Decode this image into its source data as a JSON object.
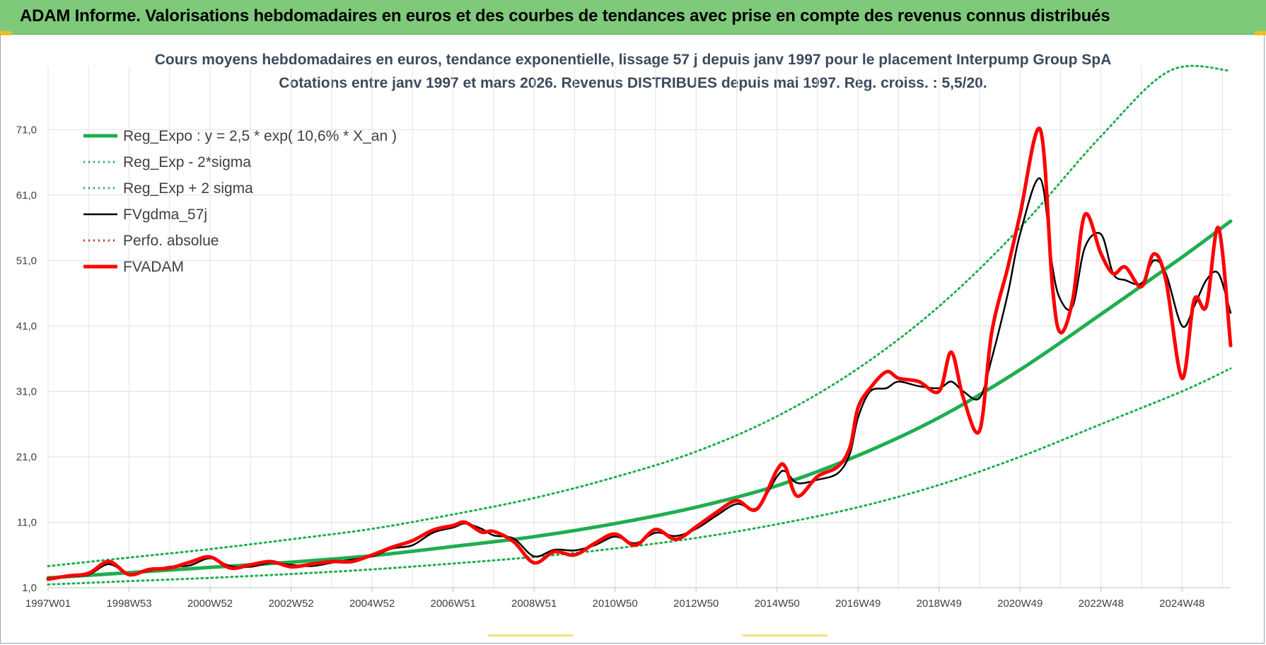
{
  "banner": {
    "title": "ADAM Informe. Valorisations hebdomadaires en euros et des courbes de tendances avec prise en compte des revenus connus distribués"
  },
  "chart_data": {
    "type": "line",
    "title": "Cours moyens hebdomadaires en euros, tendance exponentielle, lissage 57 j depuis janv 1997  pour le placement Interpump Group SpA",
    "subtitle": "Cotations entre janv 1997 et mars 2026. Revenus DISTRIBUES depuis mai 1997. Reg. croiss. : 5,5/20.",
    "xlabel": "",
    "ylabel": "",
    "xlim": [
      1997.0,
      2026.2
    ],
    "ylim": [
      1.0,
      80.0
    ],
    "y_ticks": [
      "1,0",
      "11,0",
      "21,0",
      "31,0",
      "41,0",
      "51,0",
      "61,0",
      "71,0"
    ],
    "y_tick_values": [
      1,
      11,
      21,
      31,
      41,
      51,
      61,
      71
    ],
    "x_ticks": [
      "1997W01",
      "1998W53",
      "2000W52",
      "2002W52",
      "2004W52",
      "2006W51",
      "2008W51",
      "2010W50",
      "2012W50",
      "2014W50",
      "2016W49",
      "2018W49",
      "2020W49",
      "2022W48",
      "2024W48"
    ],
    "x_tick_values": [
      1997.0,
      1999.0,
      2001.0,
      2003.0,
      2005.0,
      2007.0,
      2009.0,
      2011.0,
      2013.0,
      2015.0,
      2017.0,
      2019.0,
      2021.0,
      2023.0,
      2025.0
    ],
    "grid": true,
    "legend": {
      "position": "top-left"
    },
    "series": [
      {
        "name": "Reg_Expo : y = 2,5 * exp( 10,6% *  X_an )",
        "style": "solid-thick",
        "color": "#1fae4f",
        "x": [
          1997.0,
          1999.0,
          2001.0,
          2003.0,
          2005.0,
          2007.0,
          2009.0,
          2011.0,
          2013.0,
          2015.0,
          2017.0,
          2019.0,
          2021.0,
          2023.0,
          2025.0,
          2026.2
        ],
        "y": [
          2.5,
          3.3,
          4.1,
          4.9,
          5.9,
          7.3,
          8.8,
          10.8,
          13.3,
          16.6,
          21.2,
          27.0,
          34.3,
          42.8,
          51.5,
          57.0
        ]
      },
      {
        "name": "Reg_Exp - 2*sigma",
        "style": "dotted",
        "color": "#1fae4f",
        "x": [
          1997.0,
          1999.0,
          2001.0,
          2003.0,
          2005.0,
          2007.0,
          2009.0,
          2011.0,
          2013.0,
          2015.0,
          2017.0,
          2019.0,
          2021.0,
          2023.0,
          2025.0,
          2026.2
        ],
        "y": [
          1.5,
          2.0,
          2.5,
          3.1,
          3.8,
          4.7,
          5.7,
          7.0,
          8.6,
          10.7,
          13.3,
          16.7,
          21.0,
          26.0,
          31.0,
          34.5
        ]
      },
      {
        "name": "Reg_Exp + 2 sigma",
        "style": "dotted",
        "color": "#1fae4f",
        "x": [
          1997.0,
          1999.0,
          2001.0,
          2003.0,
          2005.0,
          2007.0,
          2009.0,
          2011.0,
          2013.0,
          2015.0,
          2017.0,
          2019.0,
          2021.0,
          2023.0,
          2024.7,
          2026.2
        ],
        "y": [
          4.3,
          5.6,
          6.9,
          8.4,
          10.0,
          12.2,
          14.7,
          17.9,
          21.8,
          27.2,
          34.5,
          44.0,
          56.0,
          70.0,
          80.0,
          80.0
        ]
      },
      {
        "name": "FVgdma_57j",
        "style": "solid",
        "color": "#000000",
        "x": [
          1997.0,
          1997.5,
          1998.0,
          1998.5,
          1999.0,
          1999.5,
          2000.0,
          2000.5,
          2001.0,
          2001.5,
          2002.0,
          2002.5,
          2003.0,
          2003.5,
          2004.0,
          2004.5,
          2005.0,
          2005.5,
          2006.0,
          2006.5,
          2007.0,
          2007.3,
          2007.7,
          2008.0,
          2008.5,
          2009.0,
          2009.5,
          2010.0,
          2010.5,
          2011.0,
          2011.5,
          2012.0,
          2012.5,
          2013.0,
          2013.5,
          2014.0,
          2014.5,
          2015.0,
          2015.2,
          2015.5,
          2016.0,
          2016.5,
          2016.8,
          2017.0,
          2017.3,
          2017.7,
          2018.0,
          2018.5,
          2019.0,
          2019.3,
          2019.6,
          2020.0,
          2020.3,
          2020.7,
          2021.0,
          2021.5,
          2021.8,
          2022.0,
          2022.3,
          2022.6,
          2023.0,
          2023.3,
          2023.6,
          2024.0,
          2024.3,
          2024.6,
          2025.0,
          2025.3,
          2025.6,
          2025.9,
          2026.2
        ],
        "y": [
          2.5,
          2.7,
          3.0,
          4.6,
          3.1,
          3.6,
          4.2,
          4.4,
          5.5,
          4.3,
          4.2,
          4.8,
          4.5,
          4.3,
          4.8,
          5.3,
          5.8,
          7.0,
          7.5,
          9.4,
          10.2,
          10.8,
          10.0,
          9.0,
          8.5,
          5.8,
          6.8,
          6.7,
          7.5,
          8.8,
          7.8,
          9.4,
          8.9,
          10.0,
          12.0,
          13.8,
          13.2,
          18.0,
          18.8,
          17.0,
          17.5,
          18.5,
          21.5,
          27.0,
          31.0,
          31.5,
          32.5,
          31.8,
          31.5,
          32.5,
          31.0,
          30.0,
          36.0,
          46.0,
          55.0,
          63.5,
          50.0,
          45.0,
          44.0,
          53.0,
          55.0,
          49.0,
          48.0,
          47.5,
          51.0,
          49.0,
          41.0,
          44.0,
          48.0,
          49.0,
          43.0
        ]
      },
      {
        "name": "Perfo. absolue",
        "style": "dotted",
        "color": "#e32222",
        "x": [],
        "y": []
      },
      {
        "name": "FVADAM",
        "style": "solid-thick",
        "color": "#ff0000",
        "x": [
          1997.0,
          1997.5,
          1998.0,
          1998.5,
          1999.0,
          1999.5,
          2000.0,
          2000.5,
          2001.0,
          2001.5,
          2002.0,
          2002.5,
          2003.0,
          2003.5,
          2004.0,
          2004.5,
          2005.0,
          2005.5,
          2006.0,
          2006.5,
          2007.0,
          2007.3,
          2007.7,
          2008.0,
          2008.5,
          2009.0,
          2009.5,
          2010.0,
          2010.5,
          2011.0,
          2011.5,
          2012.0,
          2012.5,
          2013.0,
          2013.5,
          2014.0,
          2014.5,
          2015.0,
          2015.2,
          2015.5,
          2016.0,
          2016.5,
          2016.8,
          2017.0,
          2017.3,
          2017.7,
          2018.0,
          2018.5,
          2019.0,
          2019.3,
          2019.6,
          2020.0,
          2020.3,
          2020.7,
          2021.0,
          2021.5,
          2021.8,
          2022.0,
          2022.3,
          2022.6,
          2023.0,
          2023.3,
          2023.6,
          2024.0,
          2024.3,
          2024.6,
          2025.0,
          2025.3,
          2025.6,
          2025.9,
          2026.2
        ],
        "y": [
          2.3,
          2.8,
          3.2,
          5.0,
          3.0,
          3.8,
          4.0,
          4.9,
          5.7,
          4.0,
          4.5,
          5.0,
          4.2,
          4.6,
          5.0,
          5.0,
          6.0,
          7.2,
          8.2,
          9.8,
          10.5,
          11.0,
          9.5,
          9.6,
          8.0,
          4.8,
          6.5,
          6.0,
          7.8,
          9.2,
          7.5,
          9.9,
          8.4,
          10.3,
          12.5,
          14.3,
          13.0,
          19.0,
          19.5,
          15.0,
          18.0,
          19.5,
          22.5,
          28.5,
          31.5,
          34.0,
          33.0,
          32.5,
          31.0,
          37.0,
          30.0,
          25.0,
          40.0,
          50.0,
          58.0,
          71.0,
          47.0,
          40.0,
          45.0,
          58.0,
          52.0,
          49.0,
          50.0,
          47.0,
          52.0,
          48.0,
          33.0,
          45.0,
          44.0,
          56.0,
          38.0
        ]
      }
    ]
  }
}
